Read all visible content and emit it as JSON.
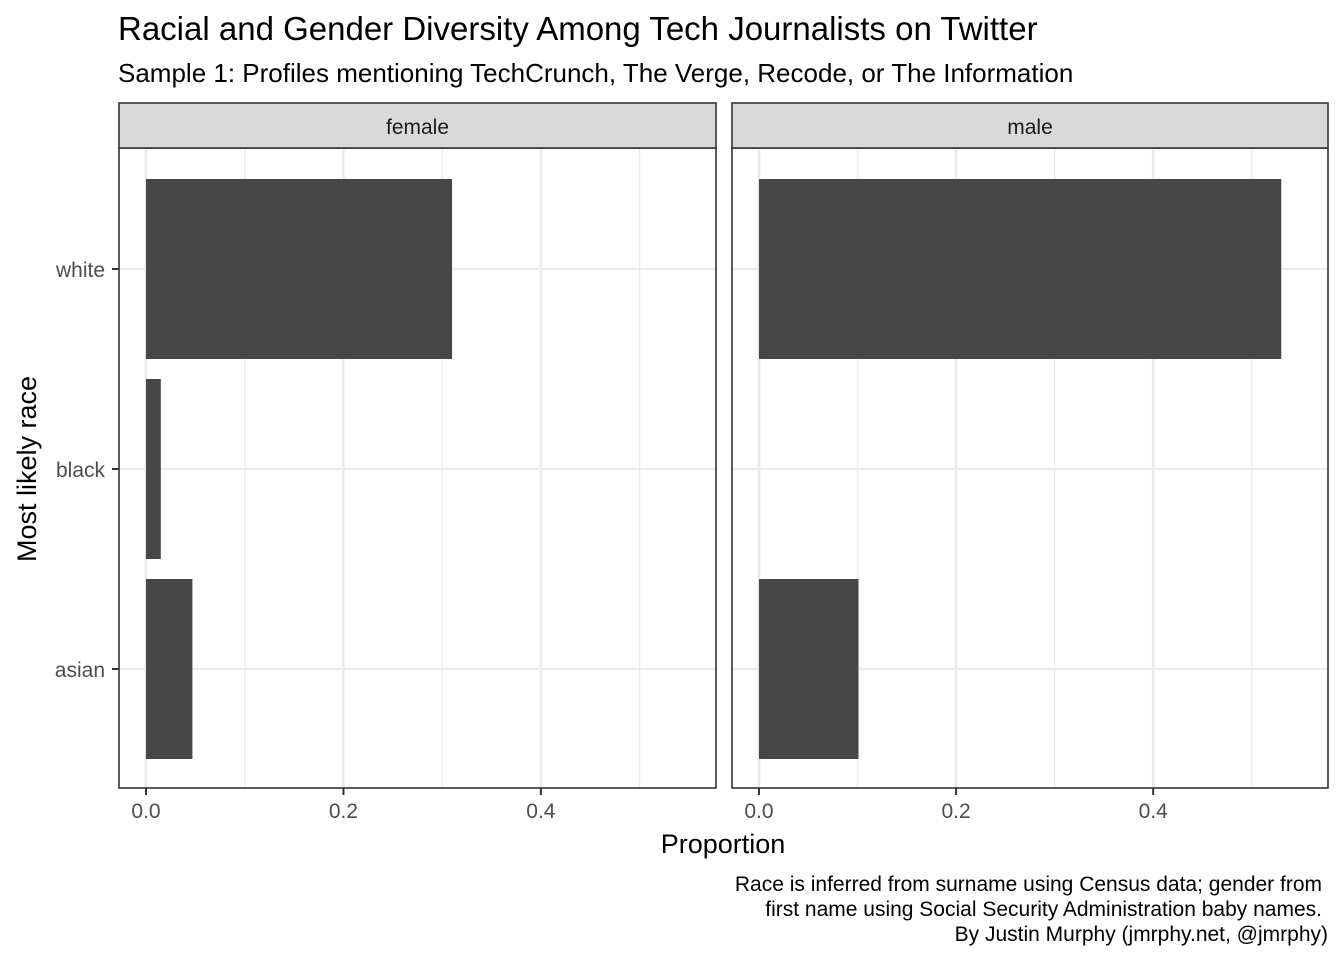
{
  "title": "Racial and Gender Diversity Among Tech Journalists on Twitter",
  "subtitle": "Sample 1: Profiles mentioning TechCrunch, The Verge, Recode, or The Information",
  "caption": [
    "Race is inferred from surname using Census data; gender from",
    "first name using Social Security Administration baby names.",
    "By Justin Murphy (jmrphy.net, @jmrphy)"
  ],
  "colors": {
    "bar": "#474747",
    "strip": "#d9d9d9",
    "grid": "#ebebeb",
    "border": "#333333"
  },
  "chart_data": {
    "type": "bar",
    "orientation": "horizontal",
    "title": "Racial and Gender Diversity Among Tech Journalists on Twitter",
    "subtitle": "Sample 1: Profiles mentioning TechCrunch, The Verge, Recode, or The Information",
    "xlabel": "Proportion",
    "ylabel": "Most likely race",
    "categories": [
      "white",
      "black",
      "asian"
    ],
    "xlim": [
      0,
      0.55
    ],
    "x_ticks": [
      "0.0",
      "0.2",
      "0.4"
    ],
    "grid": true,
    "facets": [
      {
        "name": "female",
        "values": [
          0.31,
          0.015,
          0.047
        ]
      },
      {
        "name": "male",
        "values": [
          0.53,
          0,
          0.101
        ]
      }
    ]
  }
}
